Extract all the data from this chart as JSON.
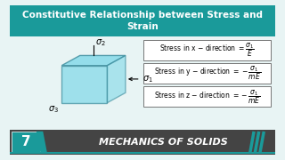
{
  "title": "Constitutive Relationship between Stress and\nStrain",
  "title_bg": "#1a9a9a",
  "title_color": "white",
  "body_bg": "#e8f4f4",
  "cube_face_color": "#7fd8e8",
  "cube_edge_color": "#3a8a9a",
  "cube_alpha": 0.7,
  "formula_bg": "white",
  "formula_border": "#555555",
  "formulas": [
    "Stress in x $-$ direction $= \\dfrac{\\sigma_1}{E}$",
    "Stress in y $-$ direction $= -\\dfrac{\\sigma_1}{mE}$",
    "Stress in z $-$ direction $= -\\dfrac{\\sigma_1}{mE}$"
  ],
  "footer_bg": "#444444",
  "footer_teal": "#1a9a9a",
  "footer_number": "7",
  "footer_text": "MECHANICS OF SOLIDS",
  "sigma1_label": "$\\sigma_1$",
  "sigma2_label": "$\\sigma_2$",
  "sigma3_label": "$\\sigma_3$"
}
